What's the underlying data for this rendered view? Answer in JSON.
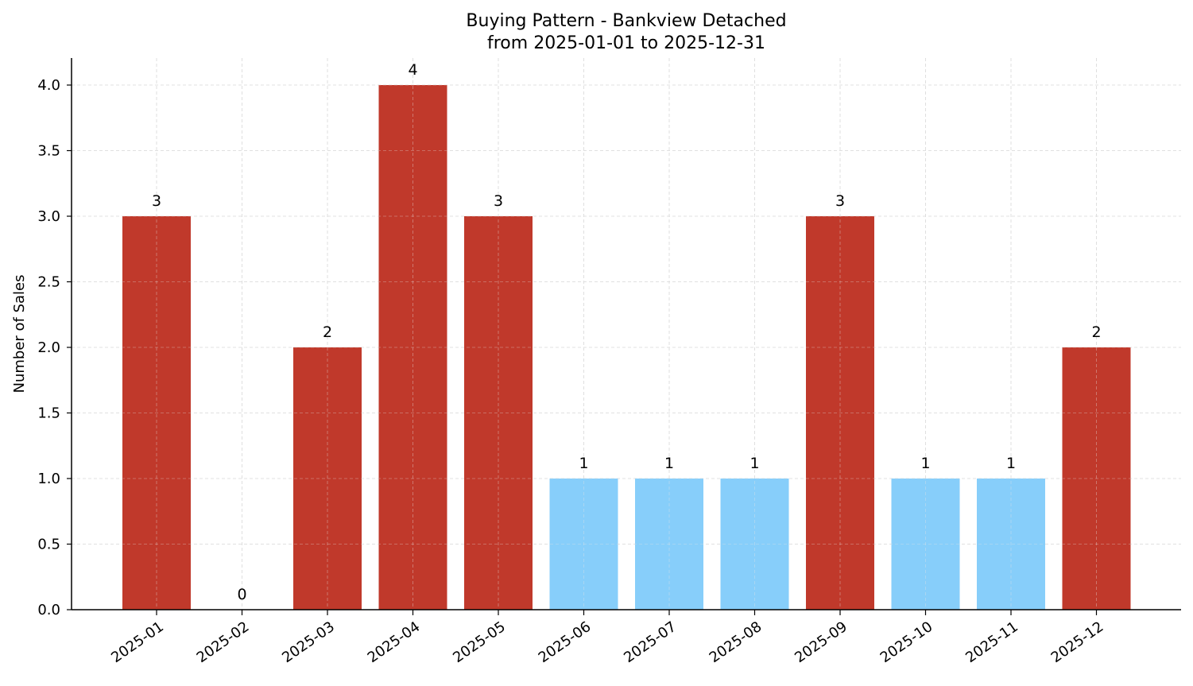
{
  "chart_data": {
    "type": "bar",
    "title": "Buying Pattern - Bankview Detached",
    "subtitle": "from 2025-01-01 to 2025-12-31",
    "xlabel": "",
    "ylabel": "Number of Sales",
    "categories": [
      "2025-01",
      "2025-02",
      "2025-03",
      "2025-04",
      "2025-05",
      "2025-06",
      "2025-07",
      "2025-08",
      "2025-09",
      "2025-10",
      "2025-11",
      "2025-12"
    ],
    "values": [
      3,
      0,
      2,
      4,
      3,
      1,
      1,
      1,
      3,
      1,
      1,
      2
    ],
    "bar_colors": [
      "#c0392b",
      "#c0392b",
      "#c0392b",
      "#c0392b",
      "#c0392b",
      "#87cefa",
      "#87cefa",
      "#87cefa",
      "#c0392b",
      "#87cefa",
      "#87cefa",
      "#c0392b"
    ],
    "data_labels": [
      "3",
      "0",
      "2",
      "4",
      "3",
      "1",
      "1",
      "1",
      "3",
      "1",
      "1",
      "2"
    ],
    "ylim": [
      0,
      4.2
    ],
    "yticks": [
      0.0,
      0.5,
      1.0,
      1.5,
      2.0,
      2.5,
      3.0,
      3.5,
      4.0
    ],
    "ytick_labels": [
      "0.0",
      "0.5",
      "1.0",
      "1.5",
      "2.0",
      "2.5",
      "3.0",
      "3.5",
      "4.0"
    ],
    "grid": true,
    "grid_style": "dashed",
    "legend": null,
    "colors": {
      "high": "#c0392b",
      "low": "#87cefa",
      "grid": "#d3d3d3",
      "axis": "#000000"
    }
  }
}
